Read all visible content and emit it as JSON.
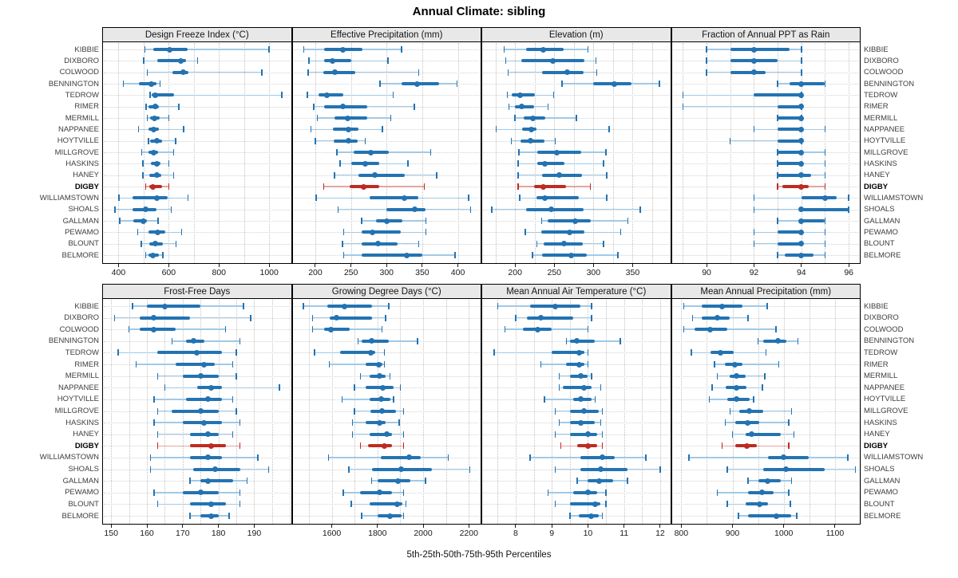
{
  "title": "Annual Climate: sibling",
  "caption": "5th-25th-50th-75th-95th Percentiles",
  "highlight_site": "DIGBY",
  "sites": [
    "KIBBIE",
    "DIXBORO",
    "COLWOOD",
    "BENNINGTON",
    "TEDROW",
    "RIMER",
    "MERMILL",
    "NAPPANEE",
    "HOYTVILLE",
    "MILLGROVE",
    "HASKINS",
    "HANEY",
    "DIGBY",
    "WILLIAMSTOWN",
    "SHOALS",
    "GALLMAN",
    "PEWAMO",
    "BLOUNT",
    "BELMORE"
  ],
  "colors": {
    "series_blue": "#2373b2",
    "series_blue_light": "#a2c9e5",
    "highlight_red": "#bd2b23",
    "highlight_red_light": "#e3a69f",
    "header_bg": "#e8e8e8",
    "frame": "#000000"
  },
  "chart_data": {
    "type": "dotplot-interval",
    "layout": "2x4 trellis, shared site categories on y-axis, labels on both sides",
    "percentile_levels": [
      5,
      25,
      50,
      75,
      95
    ],
    "legend_note": "thin line = 5th-95th, thick line = 25th-75th, dot = 50th percentile",
    "panels": [
      {
        "title": "Design Freeze Index (°C)",
        "xlim": [
          335,
          1090
        ],
        "ticks": [
          400,
          600,
          800,
          1000
        ],
        "grid_step": 100,
        "values": [
          [
            505,
            540,
            605,
            675,
            1000
          ],
          [
            500,
            555,
            648,
            668,
            715
          ],
          [
            515,
            615,
            658,
            678,
            970
          ],
          [
            420,
            480,
            530,
            550,
            565
          ],
          [
            525,
            532,
            545,
            620,
            1050
          ],
          [
            510,
            518,
            545,
            560,
            640
          ],
          [
            515,
            525,
            543,
            565,
            600
          ],
          [
            480,
            518,
            540,
            560,
            660
          ],
          [
            520,
            527,
            553,
            572,
            627
          ],
          [
            492,
            519,
            540,
            557,
            620
          ],
          [
            497,
            529,
            553,
            566,
            600
          ],
          [
            497,
            524,
            553,
            571,
            619
          ],
          [
            508,
            524,
            537,
            575,
            600
          ],
          [
            402,
            455,
            553,
            596,
            677
          ],
          [
            386,
            455,
            508,
            550,
            610
          ],
          [
            405,
            460,
            500,
            513,
            557
          ],
          [
            476,
            518,
            557,
            587,
            651
          ],
          [
            490,
            524,
            546,
            577,
            629
          ],
          [
            508,
            518,
            537,
            561,
            577
          ]
        ]
      },
      {
        "title": "Effective Precipitation (mm)",
        "xlim": [
          167,
          433
        ],
        "ticks": [
          200,
          250,
          300,
          350,
          400
        ],
        "grid_step": 50,
        "values": [
          [
            184,
            212,
            239,
            266,
            321
          ],
          [
            191,
            212,
            224,
            251,
            302
          ],
          [
            190,
            211,
            228,
            256,
            345
          ],
          [
            291,
            321,
            343,
            374,
            399
          ],
          [
            189,
            204,
            216,
            239,
            309
          ],
          [
            198,
            212,
            239,
            273,
            339
          ],
          [
            203,
            227,
            245,
            273,
            306
          ],
          [
            194,
            225,
            247,
            261,
            294
          ],
          [
            200,
            226,
            247,
            259,
            270
          ],
          [
            230,
            254,
            278,
            303,
            362
          ],
          [
            235,
            250,
            270,
            290,
            330
          ],
          [
            227,
            261,
            283,
            326,
            370
          ],
          [
            212,
            248,
            268,
            290,
            353
          ],
          [
            201,
            276,
            325,
            344,
            415
          ],
          [
            232,
            300,
            340,
            355,
            418
          ],
          [
            265,
            285,
            300,
            322,
            355
          ],
          [
            240,
            265,
            280,
            320,
            355
          ],
          [
            238,
            265,
            288,
            315,
            345
          ],
          [
            240,
            265,
            328,
            350,
            396
          ]
        ]
      },
      {
        "title": "Elevation (m)",
        "xlim": [
          157,
          399
        ],
        "ticks": [
          200,
          250,
          300,
          350
        ],
        "grid_step": 25,
        "values": [
          [
            186,
            214,
            236,
            262,
            293
          ],
          [
            188,
            208,
            248,
            288,
            303
          ],
          [
            191,
            234,
            267,
            287,
            304
          ],
          [
            260,
            300,
            327,
            349,
            384
          ],
          [
            190,
            196,
            206,
            225,
            249
          ],
          [
            192,
            200,
            208,
            224,
            242
          ],
          [
            200,
            211,
            223,
            239,
            278
          ],
          [
            176,
            209,
            221,
            227,
            320
          ],
          [
            195,
            207,
            220,
            237,
            251
          ],
          [
            205,
            228,
            253,
            284,
            316
          ],
          [
            204,
            228,
            238,
            263,
            313
          ],
          [
            204,
            234,
            256,
            285,
            317
          ],
          [
            204,
            224,
            236,
            265,
            296
          ],
          [
            206,
            227,
            238,
            281,
            317
          ],
          [
            170,
            214,
            246,
            287,
            360
          ],
          [
            234,
            242,
            277,
            297,
            344
          ],
          [
            213,
            233,
            270,
            288,
            335
          ],
          [
            228,
            236,
            262,
            286,
            313
          ],
          [
            222,
            234,
            272,
            292,
            331
          ]
        ]
      },
      {
        "title": "Fraction of Annual PPT as Rain",
        "xlim": [
          88.5,
          96.5
        ],
        "ticks": [
          90,
          92,
          94,
          96
        ],
        "grid_step": 1,
        "values": [
          [
            90,
            91,
            92,
            93.5,
            94
          ],
          [
            90,
            91,
            92,
            93,
            94
          ],
          [
            90,
            91,
            92,
            92.5,
            94
          ],
          [
            93,
            93.5,
            94,
            95,
            95
          ],
          [
            89,
            92,
            94,
            94,
            94
          ],
          [
            89,
            93,
            94,
            94,
            94
          ],
          [
            93,
            93,
            94,
            94,
            94
          ],
          [
            92,
            93,
            94,
            94,
            95
          ],
          [
            91,
            93,
            94,
            94,
            94
          ],
          [
            93,
            93,
            94,
            94,
            95
          ],
          [
            93,
            93,
            94,
            94,
            95
          ],
          [
            93,
            93,
            94,
            94.4,
            95
          ],
          [
            93,
            93.2,
            94,
            94.3,
            95
          ],
          [
            92,
            94,
            95,
            95.5,
            96
          ],
          [
            92,
            94,
            94,
            96,
            96
          ],
          [
            93,
            94,
            94,
            95,
            95
          ],
          [
            92,
            93,
            94,
            94,
            95
          ],
          [
            92,
            93,
            94,
            94,
            95
          ],
          [
            93,
            93.3,
            94,
            94.5,
            95
          ]
        ]
      },
      {
        "title": "Frost-Free Days",
        "xlim": [
          147.5,
          200.5
        ],
        "ticks": [
          150,
          160,
          170,
          180,
          190
        ],
        "grid_step": 5,
        "values": [
          [
            156,
            160,
            165,
            175,
            187
          ],
          [
            151,
            158,
            162,
            172,
            189
          ],
          [
            155,
            158,
            162,
            168,
            182
          ],
          [
            167,
            171,
            173,
            176,
            186
          ],
          [
            152,
            163,
            174,
            181,
            185
          ],
          [
            157,
            168,
            176,
            179,
            184
          ],
          [
            163,
            170,
            175,
            180,
            185
          ],
          [
            165,
            174,
            178,
            181,
            197
          ],
          [
            162,
            171,
            177,
            181,
            184
          ],
          [
            163,
            167,
            175,
            180,
            185
          ],
          [
            162,
            170,
            176,
            181,
            186
          ],
          [
            163,
            172,
            177,
            180,
            184
          ],
          [
            163,
            172,
            178,
            182,
            186
          ],
          [
            161,
            172,
            177,
            181,
            191
          ],
          [
            161,
            173,
            179,
            186,
            194
          ],
          [
            172,
            175,
            177,
            184,
            188
          ],
          [
            162,
            170,
            175,
            180,
            186
          ],
          [
            163,
            172,
            178,
            182,
            186
          ],
          [
            172,
            175,
            178,
            180,
            183
          ]
        ]
      },
      {
        "title": "Growing Degree Days (°C)",
        "xlim": [
          1425,
          2255
        ],
        "ticks": [
          1600,
          1800,
          2000,
          2200
        ],
        "grid_step": 100,
        "values": [
          [
            1475,
            1580,
            1655,
            1775,
            1850
          ],
          [
            1515,
            1590,
            1620,
            1775,
            1835
          ],
          [
            1515,
            1565,
            1595,
            1680,
            1820
          ],
          [
            1715,
            1730,
            1775,
            1850,
            1975
          ],
          [
            1525,
            1635,
            1770,
            1790,
            1830
          ],
          [
            1590,
            1750,
            1805,
            1820,
            1830
          ],
          [
            1725,
            1765,
            1810,
            1835,
            1855
          ],
          [
            1700,
            1750,
            1825,
            1870,
            1900
          ],
          [
            1645,
            1765,
            1815,
            1855,
            1870
          ],
          [
            1700,
            1770,
            1820,
            1880,
            1915
          ],
          [
            1690,
            1750,
            1810,
            1835,
            1895
          ],
          [
            1690,
            1765,
            1840,
            1865,
            1915
          ],
          [
            1725,
            1760,
            1830,
            1865,
            1915
          ],
          [
            1585,
            1815,
            1940,
            1990,
            2110
          ],
          [
            1675,
            1775,
            1905,
            2040,
            2205
          ],
          [
            1775,
            1800,
            1890,
            1945,
            2010
          ],
          [
            1650,
            1725,
            1810,
            1865,
            1915
          ],
          [
            1685,
            1765,
            1885,
            1910,
            1925
          ],
          [
            1730,
            1800,
            1855,
            1905,
            1915
          ]
        ]
      },
      {
        "title": "Mean Annual Air Temperature (°C)",
        "xlim": [
          7.05,
          12.3
        ],
        "ticks": [
          8,
          9,
          10,
          11,
          12
        ],
        "grid_step": 0.5,
        "values": [
          [
            7.5,
            8.4,
            9.1,
            9.8,
            10.1
          ],
          [
            8.0,
            8.3,
            8.7,
            9.6,
            10.1
          ],
          [
            7.7,
            8.2,
            8.6,
            9.0,
            10.0
          ],
          [
            9.4,
            9.5,
            9.7,
            10.2,
            10.9
          ],
          [
            7.4,
            9.0,
            9.75,
            9.9,
            10.0
          ],
          [
            8.7,
            9.4,
            9.75,
            9.9,
            10.0
          ],
          [
            9.2,
            9.5,
            9.8,
            10.0,
            10.1
          ],
          [
            9.2,
            9.3,
            9.9,
            10.1,
            10.35
          ],
          [
            8.8,
            9.6,
            9.8,
            10.1,
            10.2
          ],
          [
            9.1,
            9.5,
            9.9,
            10.3,
            10.4
          ],
          [
            9.2,
            9.5,
            9.8,
            10.2,
            10.35
          ],
          [
            9.1,
            9.5,
            10.0,
            10.25,
            10.4
          ],
          [
            9.25,
            9.7,
            10.0,
            10.25,
            10.4
          ],
          [
            8.4,
            9.8,
            10.4,
            10.75,
            11.6
          ],
          [
            9.1,
            9.8,
            10.35,
            11.1,
            12.0
          ],
          [
            9.7,
            10.0,
            10.3,
            10.7,
            11.1
          ],
          [
            8.9,
            9.6,
            10.0,
            10.25,
            10.5
          ],
          [
            9.1,
            9.5,
            10.2,
            10.35,
            10.5
          ],
          [
            9.5,
            9.75,
            10.1,
            10.3,
            10.4
          ]
        ]
      },
      {
        "title": "Mean Annual Precipitation (mm)",
        "xlim": [
          780,
          1150
        ],
        "ticks": [
          800,
          900,
          1000,
          1100
        ],
        "grid_step": 50,
        "values": [
          [
            805,
            840,
            880,
            920,
            968
          ],
          [
            822,
            840,
            870,
            895,
            930
          ],
          [
            805,
            826,
            856,
            890,
            985
          ],
          [
            950,
            960,
            988,
            1005,
            1028
          ],
          [
            820,
            857,
            877,
            903,
            965
          ],
          [
            865,
            885,
            905,
            920,
            990
          ],
          [
            870,
            895,
            908,
            925,
            963
          ],
          [
            860,
            887,
            907,
            928,
            958
          ],
          [
            855,
            890,
            908,
            933,
            941
          ],
          [
            895,
            913,
            932,
            960,
            1015
          ],
          [
            886,
            905,
            930,
            952,
            1010
          ],
          [
            900,
            925,
            938,
            995,
            1020
          ],
          [
            880,
            905,
            928,
            948,
            1010
          ],
          [
            815,
            970,
            1000,
            1048,
            1125
          ],
          [
            890,
            960,
            1005,
            1080,
            1140
          ],
          [
            930,
            950,
            968,
            995,
            1015
          ],
          [
            870,
            930,
            958,
            980,
            1010
          ],
          [
            890,
            925,
            953,
            970,
            1013
          ],
          [
            912,
            930,
            985,
            1015,
            1025
          ]
        ]
      }
    ]
  }
}
